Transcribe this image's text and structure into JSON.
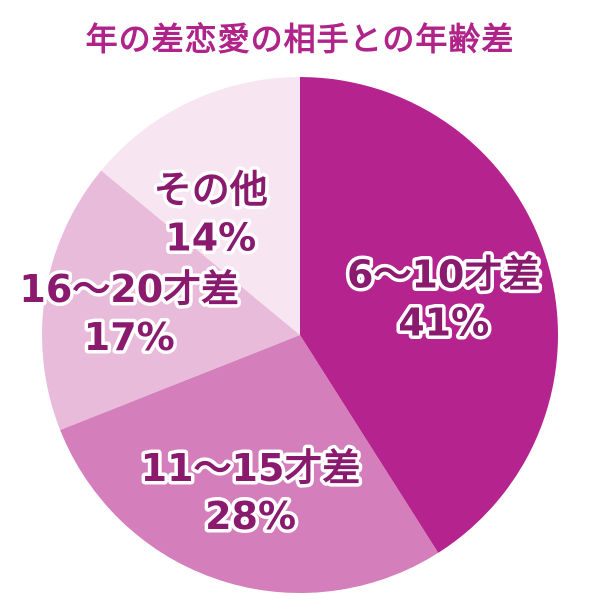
{
  "colors": {
    "title": "#b0248a",
    "label": "#8a1a6e",
    "slices": [
      "#b5248e",
      "#d47ebc",
      "#e9bbdb",
      "#f7e5f1"
    ]
  },
  "chart_data": {
    "type": "pie",
    "title": "年の差恋愛の相手との年齢差",
    "slices": [
      {
        "name": "6〜10才差",
        "value": 41,
        "value_label": "41%"
      },
      {
        "name": "11〜15才差",
        "value": 28,
        "value_label": "28%"
      },
      {
        "name": "16〜20才差",
        "value": 17,
        "value_label": "17%"
      },
      {
        "name": "その他",
        "value": 14,
        "value_label": "14%"
      }
    ],
    "start_angle": "12 o'clock",
    "direction": "clockwise",
    "legend": "none"
  }
}
